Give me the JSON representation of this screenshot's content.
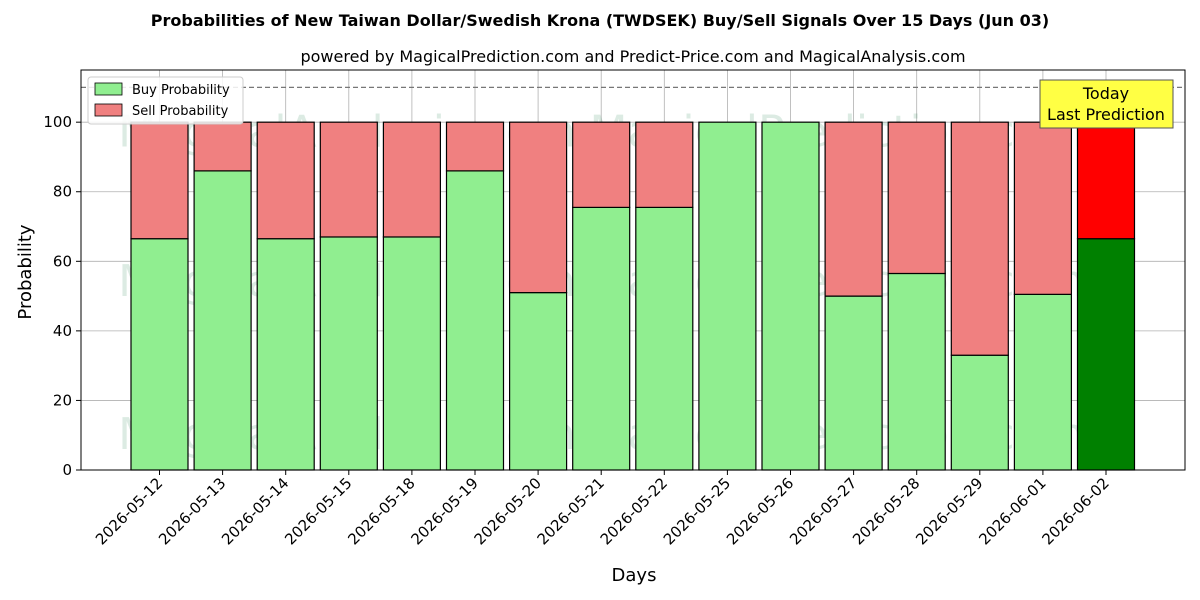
{
  "chart_data": {
    "type": "bar",
    "stacked": true,
    "title": "Probabilities of New Taiwan Dollar/Swedish Krona (TWDSEK) Buy/Sell Signals Over 15 Days (Jun 03)",
    "subtitle": "powered by MagicalPrediction.com and Predict-Price.com and MagicalAnalysis.com",
    "xlabel": "Days",
    "ylabel": "Probability",
    "ylim": [
      0,
      115
    ],
    "yticks": [
      0,
      20,
      40,
      60,
      80,
      100
    ],
    "reference_line": 110,
    "grid": true,
    "legend_position": "top-left",
    "categories": [
      "2026-05-12",
      "2026-05-13",
      "2026-05-14",
      "2026-05-15",
      "2026-05-18",
      "2026-05-19",
      "2026-05-20",
      "2026-05-21",
      "2026-05-22",
      "2026-05-25",
      "2026-05-26",
      "2026-05-27",
      "2026-05-28",
      "2026-05-29",
      "2026-06-01",
      "2026-06-02"
    ],
    "series": [
      {
        "name": "Buy Probability",
        "color": "#90ee90",
        "highlight_color": "#008000",
        "values": [
          66.5,
          86,
          66.5,
          67,
          67,
          86,
          51,
          75.5,
          75.5,
          100,
          100,
          50,
          56.5,
          33,
          50.5,
          66.5
        ]
      },
      {
        "name": "Sell Probability",
        "color": "#f08080",
        "highlight_color": "#ff0000",
        "values": [
          33.5,
          14,
          33.5,
          33,
          33,
          14,
          49,
          24.5,
          24.5,
          0,
          0,
          50,
          43.5,
          67,
          49.5,
          33.5
        ]
      }
    ],
    "highlight_index": 15,
    "annotation": {
      "line1": "Today",
      "line2": "Last Prediction",
      "color": "#ffff44"
    },
    "watermarks": [
      "MagicalAnalysis.com",
      "MagicalPrediction.com"
    ]
  }
}
